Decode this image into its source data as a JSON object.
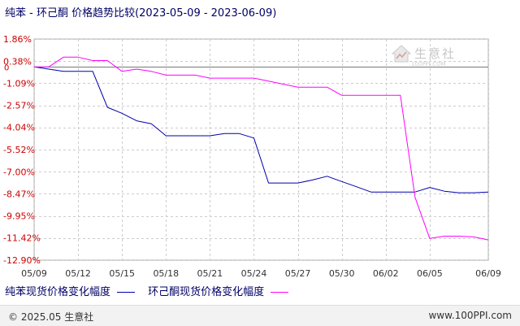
{
  "chart_data": {
    "type": "line",
    "title": "纯苯 - 环己酮 价格趋势比较(2023-05-09 - 2023-06-09)",
    "x": [
      "05/09",
      "05/10",
      "05/11",
      "05/12",
      "05/13",
      "05/14",
      "05/15",
      "05/16",
      "05/17",
      "05/18",
      "05/19",
      "05/20",
      "05/21",
      "05/22",
      "05/23",
      "05/24",
      "05/25",
      "05/26",
      "05/27",
      "05/28",
      "05/29",
      "05/30",
      "05/31",
      "06/01",
      "06/02",
      "06/03",
      "06/04",
      "06/05",
      "06/06",
      "06/07",
      "06/08",
      "06/09"
    ],
    "x_tick_labels": [
      "05/09",
      "05/12",
      "05/15",
      "05/18",
      "05/21",
      "05/24",
      "05/27",
      "05/30",
      "06/02",
      "06/05",
      "06/09"
    ],
    "y_tick_labels": [
      "1.86%",
      "0.38%",
      "-1.09%",
      "-2.57%",
      "-4.04%",
      "-5.52%",
      "-7.00%",
      "-8.47%",
      "-9.95%",
      "-11.42%",
      "-12.90%"
    ],
    "y_tick_values": [
      1.86,
      0.38,
      -1.09,
      -2.57,
      -4.04,
      -5.52,
      -7.0,
      -8.47,
      -9.95,
      -11.42,
      -12.9
    ],
    "ylim": [
      -12.9,
      1.86
    ],
    "zero_label": "0",
    "grid": true,
    "series": [
      {
        "name": "纯苯现货价格变化幅度",
        "color": "#0000aa",
        "values": [
          0,
          -0.15,
          -0.3,
          -0.3,
          -0.3,
          -2.7,
          -3.1,
          -3.6,
          -3.8,
          -4.6,
          -4.6,
          -4.6,
          -4.6,
          -4.45,
          -4.45,
          -4.75,
          -7.75,
          -7.75,
          -7.75,
          -7.55,
          -7.3,
          -7.65,
          -8.0,
          -8.35,
          -8.35,
          -8.35,
          -8.35,
          -8.05,
          -8.3,
          -8.4,
          -8.4,
          -8.35
        ]
      },
      {
        "name": "环己酮现货价格变化幅度",
        "color": "#ff00ff",
        "values": [
          0,
          0,
          0.65,
          0.65,
          0.42,
          0.42,
          -0.3,
          -0.15,
          -0.3,
          -0.55,
          -0.55,
          -0.55,
          -0.75,
          -0.75,
          -0.75,
          -0.75,
          -0.95,
          -1.15,
          -1.35,
          -1.35,
          -1.35,
          -1.9,
          -1.9,
          -1.9,
          -1.9,
          -1.9,
          -8.7,
          -11.45,
          -11.3,
          -11.3,
          -11.35,
          -11.55
        ]
      }
    ]
  },
  "watermark": {
    "name": "生意社",
    "site": "100PPI.COM"
  },
  "footer": {
    "left": "© 2025.05 生意社",
    "right": "www.100PPI.com"
  }
}
